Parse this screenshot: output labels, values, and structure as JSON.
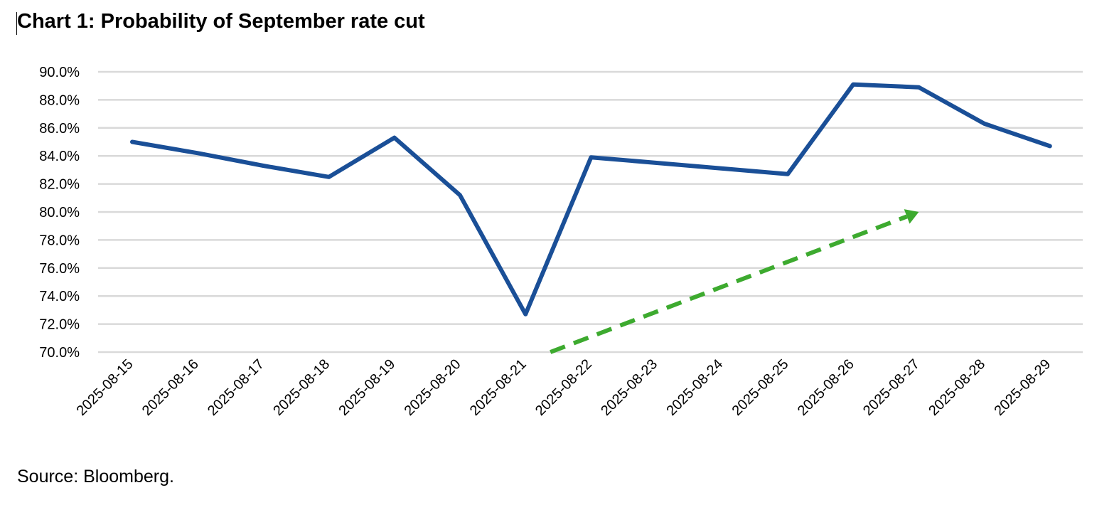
{
  "title": "Chart 1: Probability of September rate cut",
  "source": "Source: Bloomberg.",
  "colors": {
    "line": "#1a4f97",
    "trend": "#3daa2f",
    "grid": "#d9d9d9"
  },
  "chart_data": {
    "type": "line",
    "title": "Chart 1: Probability of September rate cut",
    "xlabel": "",
    "ylabel": "",
    "ylim": [
      70.0,
      90.0
    ],
    "ytick_step": 2.0,
    "y_format": "percent_1dp",
    "grid": true,
    "legend": "none",
    "categories": [
      "2025-08-15",
      "2025-08-16",
      "2025-08-17",
      "2025-08-18",
      "2025-08-19",
      "2025-08-20",
      "2025-08-21",
      "2025-08-22",
      "2025-08-23",
      "2025-08-24",
      "2025-08-25",
      "2025-08-26",
      "2025-08-27",
      "2025-08-28",
      "2025-08-29"
    ],
    "series": [
      {
        "values": [
          85.0,
          84.2,
          83.3,
          82.5,
          85.3,
          81.2,
          72.7,
          83.9,
          83.5,
          83.1,
          82.7,
          89.1,
          88.9,
          86.3,
          84.7
        ]
      }
    ],
    "annotations": [
      {
        "type": "dashed-arrow",
        "from": {
          "x": "2025-08-21",
          "y": 70.0
        },
        "to": {
          "x": "2025-08-27",
          "y": 80.0
        }
      }
    ]
  }
}
